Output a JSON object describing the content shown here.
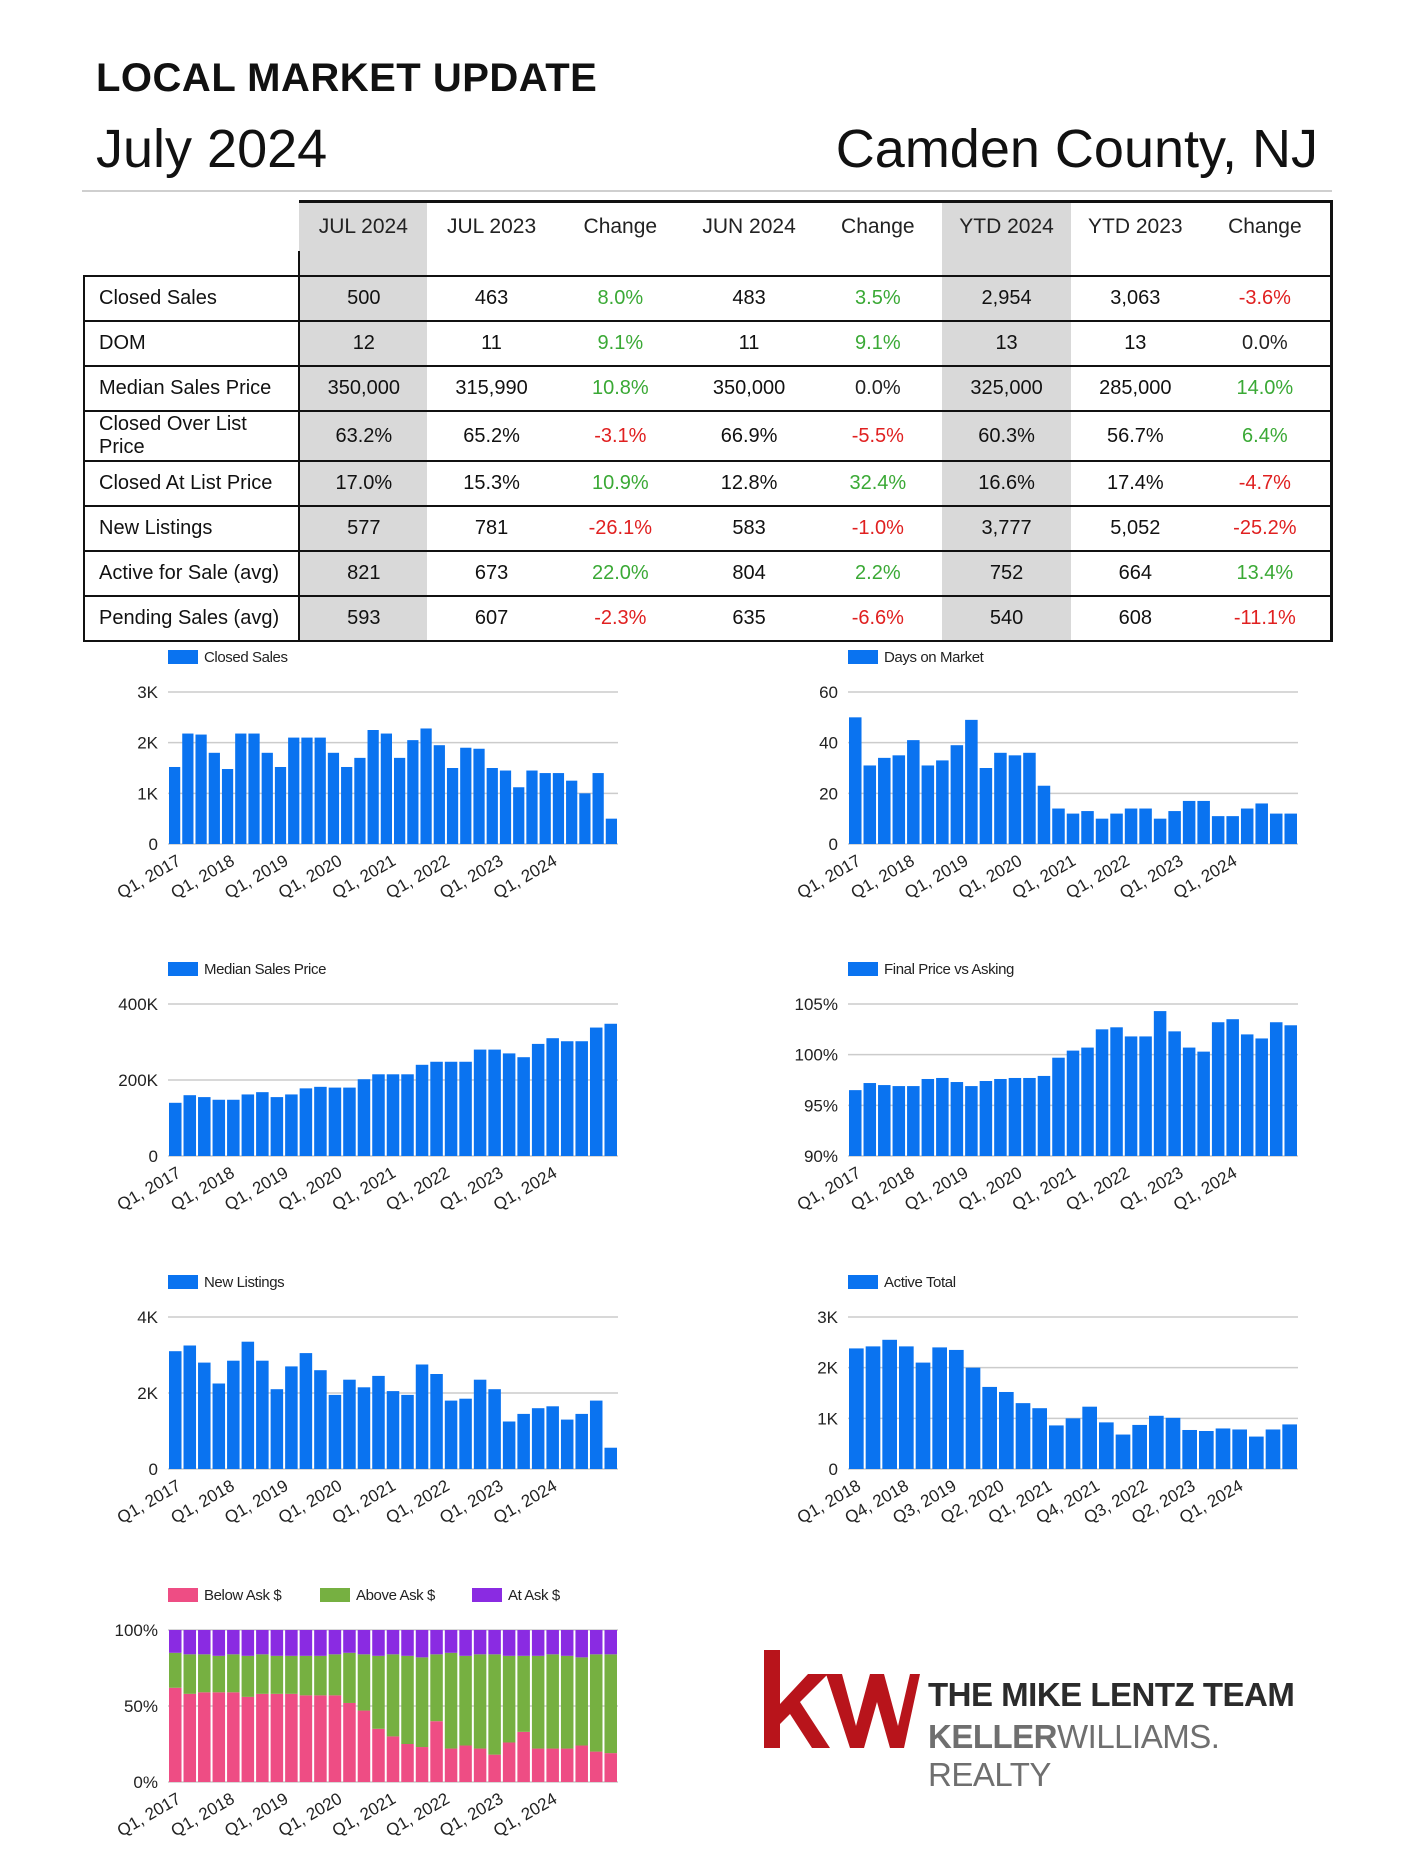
{
  "header": {
    "title": "LOCAL MARKET UPDATE",
    "date": "July 2024",
    "location": "Camden County, NJ"
  },
  "table": {
    "columns": [
      "JUL 2024",
      "JUL 2023",
      "Change",
      "JUN 2024",
      "Change",
      "YTD 2024",
      "YTD 2023",
      "Change"
    ],
    "rows": [
      {
        "label": "Closed Sales",
        "cells": [
          "500",
          "463",
          "8.0%",
          "483",
          "3.5%",
          "2,954",
          "3,063",
          "-3.6%"
        ],
        "signs": [
          "pos",
          "pos",
          "neg"
        ]
      },
      {
        "label": "DOM",
        "cells": [
          "12",
          "11",
          "9.1%",
          "11",
          "9.1%",
          "13",
          "13",
          "0.0%"
        ],
        "signs": [
          "pos",
          "pos",
          "neu"
        ]
      },
      {
        "label": "Median Sales Price",
        "cells": [
          "350,000",
          "315,990",
          "10.8%",
          "350,000",
          "0.0%",
          "325,000",
          "285,000",
          "14.0%"
        ],
        "signs": [
          "pos",
          "neu",
          "pos"
        ]
      },
      {
        "label": "Closed Over List Price",
        "cells": [
          "63.2%",
          "65.2%",
          "-3.1%",
          "66.9%",
          "-5.5%",
          "60.3%",
          "56.7%",
          "6.4%"
        ],
        "signs": [
          "neg",
          "neg",
          "pos"
        ]
      },
      {
        "label": "Closed At List Price",
        "cells": [
          "17.0%",
          "15.3%",
          "10.9%",
          "12.8%",
          "32.4%",
          "16.6%",
          "17.4%",
          "-4.7%"
        ],
        "signs": [
          "pos",
          "pos",
          "neg"
        ]
      },
      {
        "label": "New Listings",
        "cells": [
          "577",
          "781",
          "-26.1%",
          "583",
          "-1.0%",
          "3,777",
          "5,052",
          "-25.2%"
        ],
        "signs": [
          "neg",
          "neg",
          "neg"
        ]
      },
      {
        "label": "Active for Sale (avg)",
        "cells": [
          "821",
          "673",
          "22.0%",
          "804",
          "2.2%",
          "752",
          "664",
          "13.4%"
        ],
        "signs": [
          "pos",
          "pos",
          "pos"
        ]
      },
      {
        "label": "Pending Sales (avg)",
        "cells": [
          "593",
          "607",
          "-2.3%",
          "635",
          "-6.6%",
          "540",
          "608",
          "-11.1%"
        ],
        "signs": [
          "neg",
          "neg",
          "neg"
        ]
      }
    ],
    "colors": {
      "positive": "#3aa935",
      "negative": "#e02020",
      "neutral": "#222222",
      "highlight": "#d9d9d9"
    }
  },
  "logo": {
    "mark": "kw",
    "team": "THE MIKE LENTZ TEAM",
    "brand_bold": "KELLER",
    "brand_rest": "WILLIAMS. REALTY",
    "mark_color": "#b8141b"
  },
  "chart_data": [
    {
      "id": "closed-sales",
      "type": "bar",
      "title": "",
      "legend": [
        "Closed Sales"
      ],
      "color": "#0a73f0",
      "ylim": [
        0,
        3000
      ],
      "yticks": [
        0,
        1000,
        2000,
        3000
      ],
      "ytick_labels": [
        "0",
        "1K",
        "2K",
        "3K"
      ],
      "xtick_labels": [
        "Q1, 2017",
        "Q1, 2018",
        "Q1, 2019",
        "Q1, 2020",
        "Q1, 2021",
        "Q1, 2022",
        "Q1, 2023",
        "Q1, 2024"
      ],
      "values": [
        1520,
        2180,
        2160,
        1800,
        1480,
        2180,
        2180,
        1800,
        1520,
        2100,
        2100,
        2100,
        1800,
        1520,
        1700,
        2250,
        2180,
        1700,
        2050,
        2280,
        1950,
        1500,
        1900,
        1880,
        1500,
        1450,
        1120,
        1450,
        1400,
        1400,
        1250,
        1000,
        1400,
        500
      ]
    },
    {
      "id": "days-on-market",
      "type": "bar",
      "title": "",
      "legend": [
        "Days on Market"
      ],
      "color": "#0a73f0",
      "ylim": [
        0,
        60
      ],
      "yticks": [
        0,
        20,
        40,
        60
      ],
      "ytick_labels": [
        "0",
        "20",
        "40",
        "60"
      ],
      "xtick_labels": [
        "Q1, 2017",
        "Q1, 2018",
        "Q1, 2019",
        "Q1, 2020",
        "Q1, 2021",
        "Q1, 2022",
        "Q1, 2023",
        "Q1, 2024"
      ],
      "values": [
        50,
        31,
        34,
        35,
        41,
        31,
        33,
        39,
        49,
        30,
        36,
        35,
        36,
        23,
        14,
        12,
        13,
        10,
        12,
        14,
        14,
        10,
        13,
        17,
        17,
        11,
        11,
        14,
        16,
        12,
        12
      ]
    },
    {
      "id": "median-sales-price",
      "type": "bar",
      "title": "",
      "legend": [
        "Median Sales Price"
      ],
      "color": "#0a73f0",
      "ylim": [
        0,
        400000
      ],
      "yticks": [
        0,
        200000,
        400000
      ],
      "ytick_labels": [
        "0",
        "200K",
        "400K"
      ],
      "xtick_labels": [
        "Q1, 2017",
        "Q1, 2018",
        "Q1, 2019",
        "Q1, 2020",
        "Q1, 2021",
        "Q1, 2022",
        "Q1, 2023",
        "Q1, 2024"
      ],
      "values": [
        140000,
        160000,
        155000,
        148000,
        148000,
        162000,
        168000,
        155000,
        162000,
        178000,
        182000,
        180000,
        180000,
        202000,
        215000,
        215000,
        215000,
        240000,
        248000,
        248000,
        248000,
        280000,
        280000,
        270000,
        260000,
        295000,
        310000,
        302000,
        302000,
        338000,
        348000
      ]
    },
    {
      "id": "final-price-vs-asking",
      "type": "bar",
      "title": "",
      "legend": [
        "Final Price vs Asking"
      ],
      "color": "#0a73f0",
      "ylim": [
        90,
        105
      ],
      "yticks": [
        90,
        95,
        100,
        105
      ],
      "ytick_labels": [
        "90%",
        "95%",
        "100%",
        "105%"
      ],
      "xtick_labels": [
        "Q1, 2017",
        "Q1, 2018",
        "Q1, 2019",
        "Q1, 2020",
        "Q1, 2021",
        "Q1, 2022",
        "Q1, 2023",
        "Q1, 2024"
      ],
      "values": [
        96.5,
        97.2,
        97.0,
        96.9,
        96.9,
        97.6,
        97.7,
        97.3,
        96.9,
        97.4,
        97.6,
        97.7,
        97.7,
        97.9,
        99.7,
        100.4,
        100.7,
        102.5,
        102.7,
        101.8,
        101.8,
        104.3,
        102.3,
        100.7,
        100.3,
        103.2,
        103.5,
        102.0,
        101.6,
        103.2,
        102.9
      ]
    },
    {
      "id": "new-listings",
      "type": "bar",
      "title": "",
      "legend": [
        "New Listings"
      ],
      "color": "#0a73f0",
      "ylim": [
        0,
        4000
      ],
      "yticks": [
        0,
        2000,
        4000
      ],
      "ytick_labels": [
        "0",
        "2K",
        "4K"
      ],
      "xtick_labels": [
        "Q1, 2017",
        "Q1, 2018",
        "Q1, 2019",
        "Q1, 2020",
        "Q1, 2021",
        "Q1, 2022",
        "Q1, 2023",
        "Q1, 2024"
      ],
      "values": [
        3100,
        3250,
        2800,
        2250,
        2850,
        3350,
        2850,
        2100,
        2700,
        3050,
        2600,
        1950,
        2350,
        2150,
        2450,
        2050,
        1950,
        2750,
        2500,
        1800,
        1850,
        2350,
        2100,
        1250,
        1450,
        1600,
        1650,
        1300,
        1450,
        1800,
        560
      ]
    },
    {
      "id": "active-total",
      "type": "bar",
      "title": "",
      "legend": [
        "Active Total"
      ],
      "color": "#0a73f0",
      "ylim": [
        0,
        3000
      ],
      "yticks": [
        0,
        1000,
        2000,
        3000
      ],
      "ytick_labels": [
        "0",
        "1K",
        "2K",
        "3K"
      ],
      "xtick_labels": [
        "Q1, 2018",
        "Q4, 2018",
        "Q3, 2019",
        "Q2, 2020",
        "Q1, 2021",
        "Q4, 2021",
        "Q3, 2022",
        "Q2, 2023",
        "Q1, 2024"
      ],
      "values": [
        2380,
        2420,
        2550,
        2420,
        2100,
        2400,
        2350,
        2000,
        1620,
        1520,
        1300,
        1200,
        860,
        1000,
        1230,
        920,
        680,
        870,
        1050,
        1010,
        770,
        750,
        800,
        780,
        640,
        780,
        880
      ]
    },
    {
      "id": "ask-price-mix",
      "type": "bar",
      "stacked": true,
      "title": "",
      "ylim": [
        0,
        100
      ],
      "yticks": [
        0,
        50,
        100
      ],
      "ytick_labels": [
        "0%",
        "50%",
        "100%"
      ],
      "xtick_labels": [
        "Q1, 2017",
        "Q1, 2018",
        "Q1, 2019",
        "Q1, 2020",
        "Q1, 2021",
        "Q1, 2022",
        "Q1, 2023",
        "Q1, 2024"
      ],
      "series": [
        {
          "name": "Below Ask $",
          "color": "#ee4d84",
          "values": [
            62,
            58,
            59,
            59,
            59,
            56,
            58,
            58,
            58,
            57,
            57,
            57,
            52,
            47,
            35,
            30,
            25,
            23,
            40,
            22,
            24,
            22,
            18,
            26,
            33,
            22,
            22,
            22,
            24,
            20,
            19
          ]
        },
        {
          "name": "Above Ask $",
          "color": "#76b041",
          "values": [
            23,
            26,
            25,
            24,
            25,
            27,
            26,
            25,
            25,
            26,
            26,
            27,
            33,
            37,
            48,
            54,
            58,
            59,
            44,
            63,
            59,
            62,
            66,
            57,
            50,
            61,
            62,
            61,
            58,
            64,
            65
          ]
        },
        {
          "name": "At Ask $",
          "color": "#8a2be2",
          "values": [
            15,
            16,
            16,
            17,
            16,
            17,
            16,
            17,
            17,
            17,
            17,
            16,
            15,
            16,
            17,
            16,
            17,
            18,
            16,
            15,
            17,
            16,
            16,
            17,
            17,
            17,
            16,
            17,
            18,
            16,
            16
          ]
        }
      ]
    }
  ]
}
